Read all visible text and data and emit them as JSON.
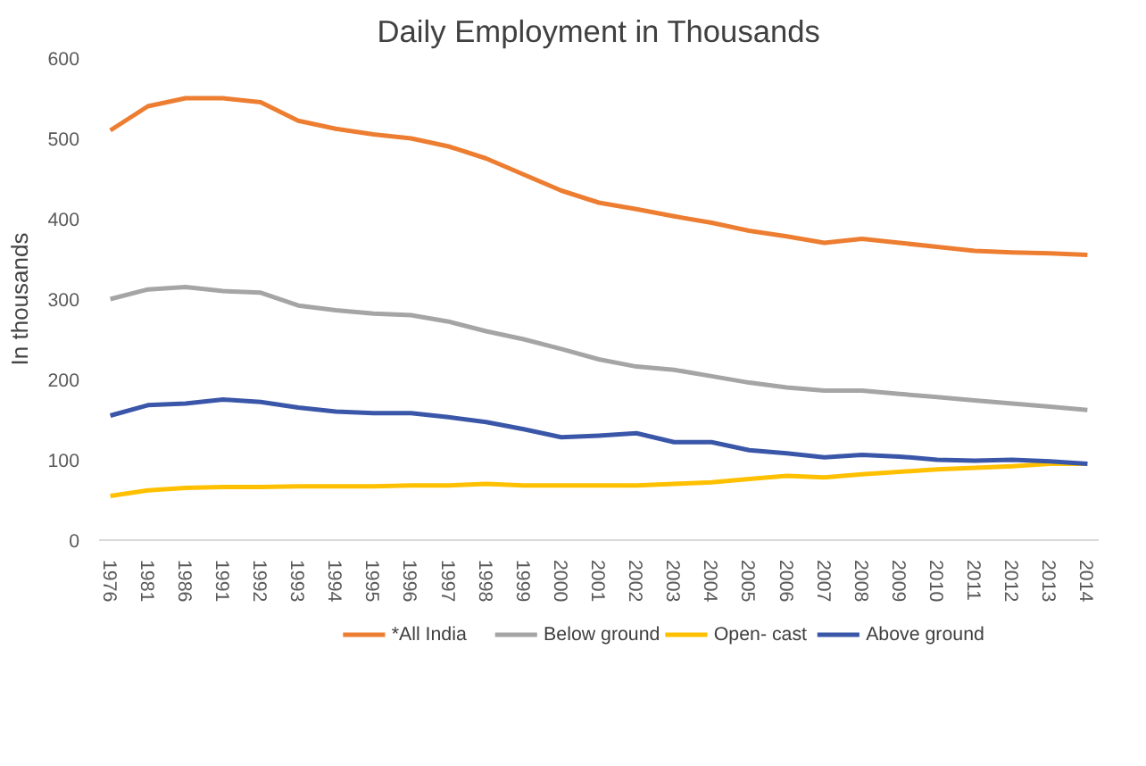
{
  "chart_data": {
    "type": "line",
    "title": "Daily Employment in Thousands",
    "ylabel": "In thousands",
    "categories": [
      "1976",
      "1981",
      "1986",
      "1991",
      "1992",
      "1993",
      "1994",
      "1995",
      "1996",
      "1997",
      "1998",
      "1999",
      "2000",
      "2001",
      "2002",
      "2003",
      "2004",
      "2005",
      "2006",
      "2007",
      "2008",
      "2009",
      "2010",
      "2011",
      "2012",
      "2013",
      "2014"
    ],
    "series": [
      {
        "name": "*All India",
        "color": "#ed7d31",
        "values": [
          510,
          540,
          550,
          550,
          545,
          522,
          512,
          505,
          500,
          490,
          475,
          455,
          435,
          420,
          412,
          403,
          395,
          385,
          378,
          370,
          375,
          370,
          365,
          360,
          358,
          357,
          355
        ]
      },
      {
        "name": "Below ground",
        "color": "#a5a5a5",
        "values": [
          300,
          312,
          315,
          310,
          308,
          292,
          286,
          282,
          280,
          272,
          260,
          250,
          238,
          225,
          216,
          212,
          204,
          196,
          190,
          186,
          186,
          182,
          178,
          174,
          170,
          166,
          162
        ]
      },
      {
        "name": "Open- cast",
        "color": "#ffc000",
        "values": [
          55,
          62,
          65,
          66,
          66,
          67,
          67,
          67,
          68,
          68,
          70,
          68,
          68,
          68,
          68,
          70,
          72,
          76,
          80,
          78,
          82,
          85,
          88,
          90,
          92,
          95,
          95
        ]
      },
      {
        "name": "Above ground",
        "color": "#3a56a8",
        "values": [
          155,
          168,
          170,
          175,
          172,
          165,
          160,
          158,
          158,
          153,
          147,
          138,
          128,
          130,
          133,
          122,
          122,
          112,
          108,
          103,
          106,
          104,
          100,
          99,
          100,
          98,
          95
        ]
      }
    ],
    "ylim": [
      0,
      600
    ],
    "yticks": [
      0,
      100,
      200,
      300,
      400,
      500,
      600
    ],
    "grid": false,
    "legend": "bottom"
  }
}
